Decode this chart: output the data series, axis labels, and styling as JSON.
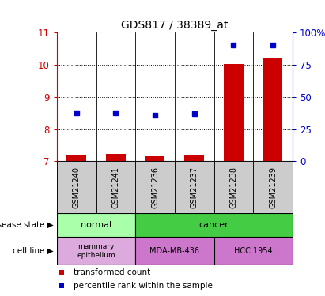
{
  "title": "GDS817 / 38389_at",
  "samples": [
    "GSM21240",
    "GSM21241",
    "GSM21236",
    "GSM21237",
    "GSM21238",
    "GSM21239"
  ],
  "red_bars": [
    7.2,
    7.22,
    7.15,
    7.18,
    10.02,
    10.2
  ],
  "blue_dots": [
    8.5,
    8.5,
    8.42,
    8.47,
    10.62,
    10.62
  ],
  "ylim": [
    7,
    11
  ],
  "yticks_left": [
    7,
    8,
    9,
    10,
    11
  ],
  "yticks_right": [
    0,
    25,
    50,
    75,
    100
  ],
  "grid_lines": [
    8,
    9,
    10
  ],
  "bar_color": "#cc0000",
  "dot_color": "#0000cc",
  "left_axis_color": "#cc0000",
  "right_axis_color": "#0000cc",
  "disease_colors": {
    "normal": "#aaffaa",
    "cancer": "#44cc44"
  },
  "cell_colors": {
    "mammary epithelium": "#ddaadd",
    "MDA-MB-436": "#cc77cc",
    "HCC 1954": "#cc77cc"
  },
  "sample_bg_color": "#cccccc",
  "legend_items": [
    "transformed count",
    "percentile rank within the sample"
  ],
  "bg_color": "#ffffff"
}
